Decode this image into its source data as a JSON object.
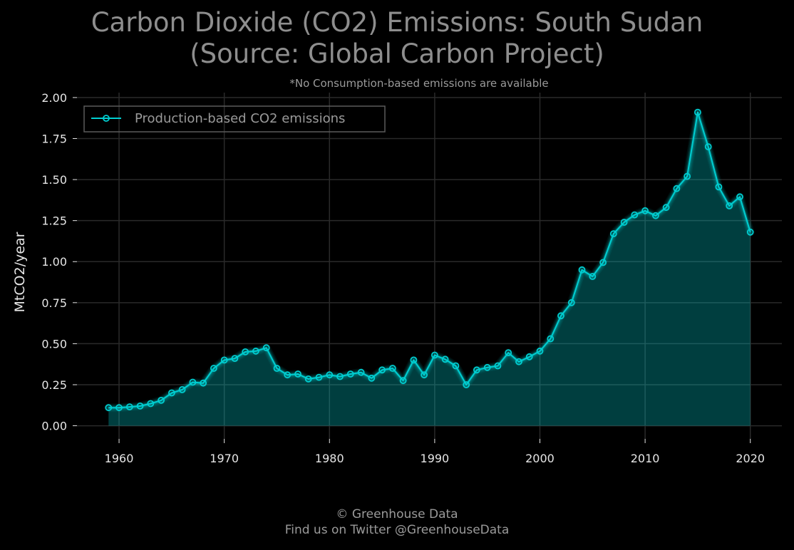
{
  "chart_data": {
    "type": "area",
    "title": "Carbon Dioxide (CO2) Emissions: South Sudan\n(Source: Global Carbon Project)",
    "subtitle": "*No Consumption-based emissions are available",
    "xlabel": "",
    "ylabel": "MtCO2/year",
    "xlim": [
      1956,
      2023
    ],
    "ylim": [
      -0.08,
      2.03
    ],
    "x_ticks": [
      1960,
      1970,
      1980,
      1990,
      2000,
      2010,
      2020
    ],
    "y_ticks": [
      "0.00",
      "0.25",
      "0.50",
      "0.75",
      "1.00",
      "1.25",
      "1.50",
      "1.75",
      "2.00"
    ],
    "grid": true,
    "legend_position": "top-left",
    "series": [
      {
        "name": "Production-based CO2 emissions",
        "color": "#00ced1",
        "x": [
          1959,
          1960,
          1961,
          1962,
          1963,
          1964,
          1965,
          1966,
          1967,
          1968,
          1969,
          1970,
          1971,
          1972,
          1973,
          1974,
          1975,
          1976,
          1977,
          1978,
          1979,
          1980,
          1981,
          1982,
          1983,
          1984,
          1985,
          1986,
          1987,
          1988,
          1989,
          1990,
          1991,
          1992,
          1993,
          1994,
          1995,
          1996,
          1997,
          1998,
          1999,
          2000,
          2001,
          2002,
          2003,
          2004,
          2005,
          2006,
          2007,
          2008,
          2009,
          2010,
          2011,
          2012,
          2013,
          2014,
          2015,
          2016,
          2017,
          2018,
          2019,
          2020
        ],
        "y": [
          0.11,
          0.11,
          0.115,
          0.12,
          0.135,
          0.155,
          0.2,
          0.22,
          0.265,
          0.26,
          0.35,
          0.4,
          0.41,
          0.45,
          0.455,
          0.475,
          0.35,
          0.31,
          0.315,
          0.285,
          0.295,
          0.31,
          0.3,
          0.315,
          0.325,
          0.29,
          0.34,
          0.35,
          0.275,
          0.4,
          0.31,
          0.43,
          0.405,
          0.365,
          0.25,
          0.34,
          0.355,
          0.365,
          0.445,
          0.39,
          0.42,
          0.455,
          0.53,
          0.67,
          0.75,
          0.95,
          0.91,
          0.995,
          1.17,
          1.24,
          1.285,
          1.31,
          1.28,
          1.33,
          1.445,
          1.52,
          1.91,
          1.7,
          1.455,
          1.34,
          1.395,
          1.18
        ]
      }
    ]
  },
  "footer": {
    "line1": "© Greenhouse Data",
    "line2": "Find us on Twitter @GreenhouseData"
  }
}
